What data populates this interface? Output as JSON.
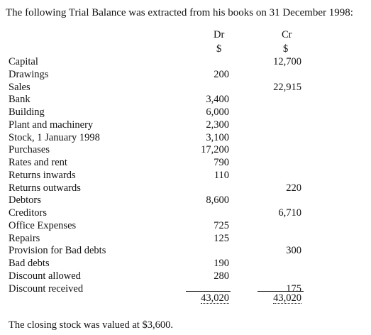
{
  "intro": "The following Trial Balance was extracted from his books on 31 December 1998:",
  "columns": {
    "dr": "Dr",
    "cr": "Cr",
    "dr_unit": "$",
    "cr_unit": "$"
  },
  "rows": [
    [
      "Capital",
      null,
      "12,700"
    ],
    [
      "Drawings",
      "200",
      null
    ],
    [
      "Sales",
      null,
      "22,915"
    ],
    [
      "Bank",
      "3,400",
      null
    ],
    [
      "Building",
      "6,000",
      null
    ],
    [
      "Plant and machinery",
      "2,300",
      null
    ],
    [
      "Stock, 1 January 1998",
      "3,100",
      null
    ],
    [
      "Purchases",
      "17,200",
      null
    ],
    [
      "Rates and rent",
      "790",
      null
    ],
    [
      "Returns inwards",
      "110",
      null
    ],
    [
      "Returns outwards",
      null,
      "220"
    ],
    [
      "Debtors",
      "8,600",
      null
    ],
    [
      "Creditors",
      null,
      "6,710"
    ],
    [
      "Office Expenses",
      "725",
      null
    ],
    [
      "Repairs",
      "125",
      null
    ],
    [
      "Provision for Bad debts",
      null,
      "300"
    ],
    [
      "Bad debts",
      "190",
      null
    ],
    [
      "Discount allowed",
      "280",
      null
    ],
    [
      "Discount received",
      null,
      "175"
    ]
  ],
  "totals": {
    "dr": "43,020",
    "cr": "43,020"
  },
  "note": "The closing stock was valued at $3,600."
}
